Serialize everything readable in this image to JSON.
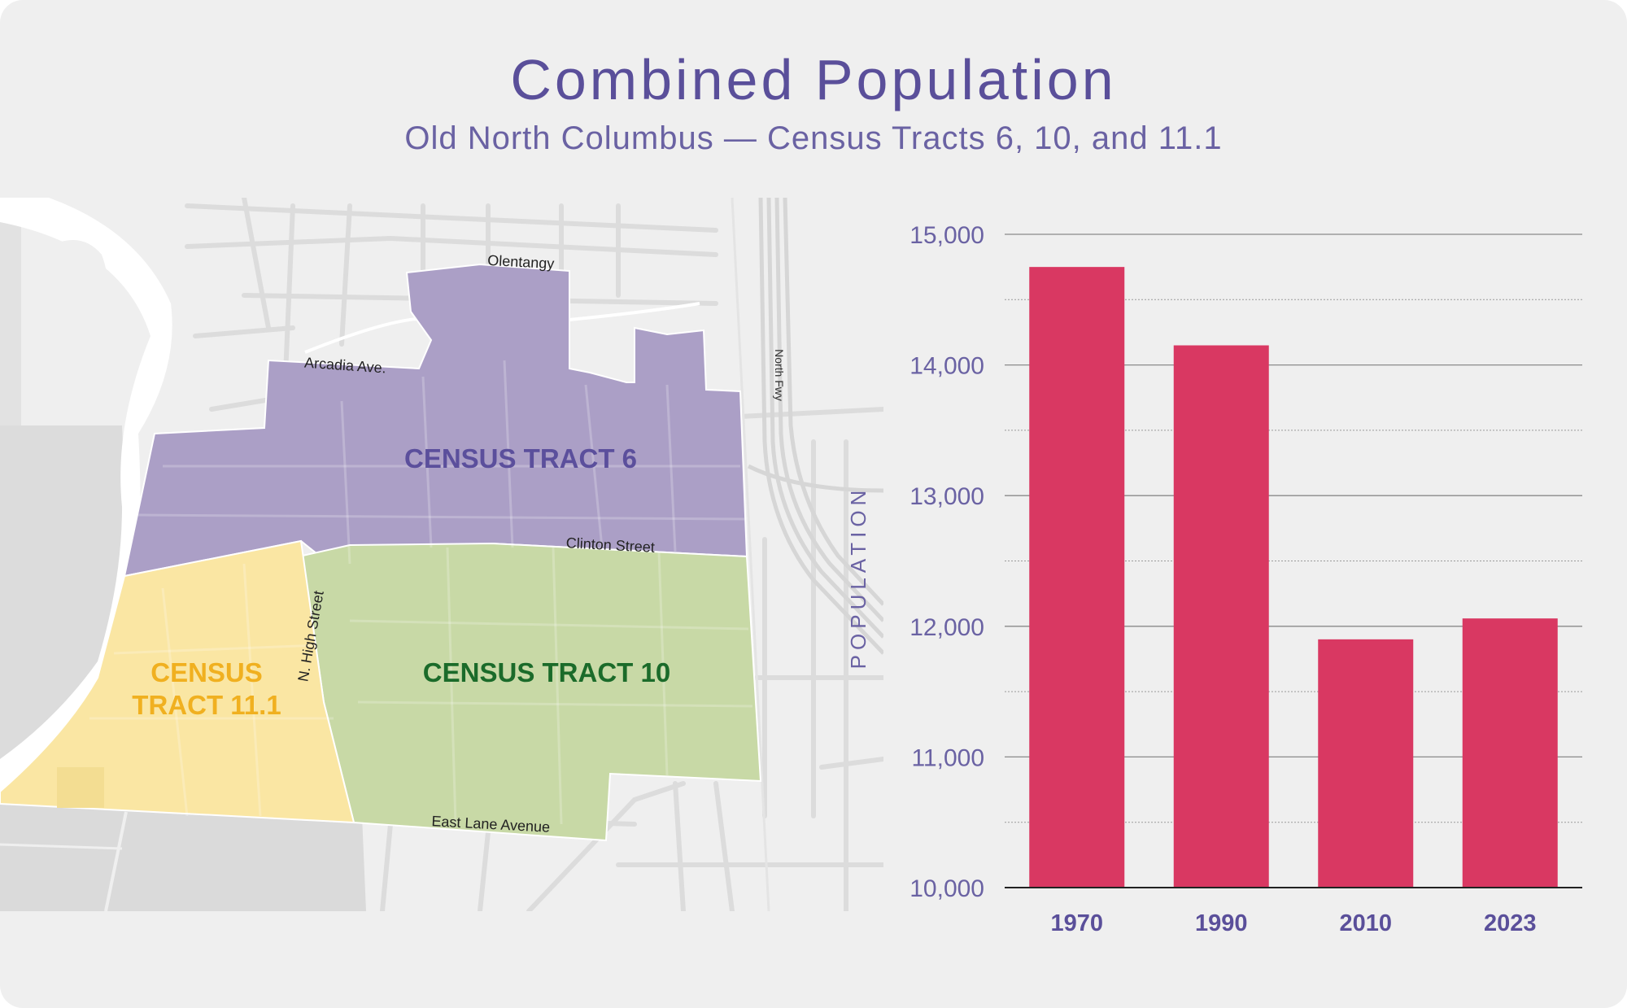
{
  "header": {
    "title": "Combined Population",
    "subtitle": "Old North Columbus — Census Tracts 6, 10, and 11.1"
  },
  "map": {
    "tracts": [
      {
        "label_lines": [
          "CENSUS TRACT 6"
        ],
        "color": "#ab9fc6",
        "label_color": "#5b4f9c"
      },
      {
        "label_lines": [
          "CENSUS TRACT 10"
        ],
        "color": "#c8d9a6",
        "label_color": "#1b6b2a"
      },
      {
        "label_lines": [
          "CENSUS",
          "TRACT 11.1"
        ],
        "color": "#fae6a3",
        "label_color": "#f0b020"
      }
    ],
    "streets": {
      "olentangy": "Olentangy",
      "arcadia": "Arcadia Ave.",
      "north_fwy": "North Fwy",
      "clinton": "Clinton Street",
      "high": "N. High Street",
      "lane": "East Lane Avenue"
    }
  },
  "chart_data": {
    "type": "bar",
    "title": "",
    "xlabel": "",
    "ylabel": "POPULATION",
    "categories": [
      "1970",
      "1990",
      "2010",
      "2023"
    ],
    "values": [
      14750,
      14150,
      11900,
      12060
    ],
    "ylim": [
      10000,
      15000
    ],
    "yticks": [
      "10,000",
      "11,000",
      "12,000",
      "13,000",
      "14,000",
      "15,000"
    ],
    "bar_color": "#d93862",
    "grid": true
  }
}
